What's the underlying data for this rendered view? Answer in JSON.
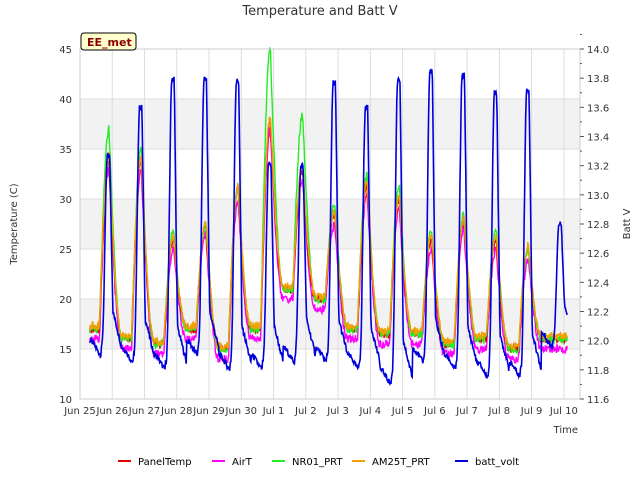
{
  "chart_data": {
    "type": "line",
    "title": "Temperature and Batt V",
    "xlabel": "Time",
    "ylabel": "Temperature (C)",
    "y2label": "Batt V",
    "badge": "EE_met",
    "ylim": [
      10,
      45
    ],
    "y2lim": [
      11.6,
      14.0
    ],
    "xlim": [
      0,
      15.5
    ],
    "y_ticks": [
      10,
      15,
      20,
      25,
      30,
      35,
      40,
      45
    ],
    "y2_ticks": [
      "11.6",
      "11.8",
      "12.0",
      "12.2",
      "12.4",
      "12.6",
      "12.8",
      "13.0",
      "13.2",
      "13.4",
      "13.6",
      "13.8",
      "14.0"
    ],
    "x_ticks": [
      {
        "label": "Jun 25",
        "day": 0
      },
      {
        "label": "Jun 26",
        "day": 1
      },
      {
        "label": "Jun 27",
        "day": 2
      },
      {
        "label": "Jun 28",
        "day": 3
      },
      {
        "label": "Jun 29",
        "day": 4
      },
      {
        "label": "Jun 30",
        "day": 5
      },
      {
        "label": "Jul 1",
        "day": 6
      },
      {
        "label": "Jul 2",
        "day": 7
      },
      {
        "label": "Jul 3",
        "day": 8
      },
      {
        "label": "Jul 4",
        "day": 9
      },
      {
        "label": "Jul 5",
        "day": 10
      },
      {
        "label": "Jul 6",
        "day": 11
      },
      {
        "label": "Jul 7",
        "day": 12
      },
      {
        "label": "Jul 8",
        "day": 13
      },
      {
        "label": "Jul 9",
        "day": 14
      },
      {
        "label": "Jul 10",
        "day": 15
      }
    ],
    "daily": {
      "day_start": 0.3,
      "days": 15,
      "temp_min": [
        17,
        16,
        15.5,
        17,
        15,
        17,
        21,
        20,
        17,
        16.5,
        16.5,
        15.5,
        16,
        15,
        16
      ],
      "temp_max": [
        34,
        34,
        26,
        27.5,
        31,
        38,
        33,
        28.5,
        31.5,
        30,
        26,
        28,
        26,
        25,
        16
      ],
      "nr01_max": [
        37,
        35,
        27,
        27.5,
        31,
        45,
        38.5,
        29.5,
        32.5,
        31.5,
        27,
        28.5,
        27,
        25,
        16
      ],
      "airt_offset": -1.0,
      "batt_min": [
        11.95,
        11.9,
        11.85,
        11.95,
        11.85,
        11.85,
        11.9,
        11.9,
        11.85,
        11.75,
        11.9,
        11.85,
        11.8,
        11.8,
        12.0
      ],
      "batt_max": [
        13.27,
        13.6,
        13.8,
        13.8,
        13.78,
        13.22,
        13.2,
        13.77,
        13.6,
        13.78,
        13.85,
        13.82,
        13.7,
        13.72,
        12.8
      ]
    },
    "series": [
      {
        "name": "PanelTemp",
        "color": "#e00000",
        "axis": "left"
      },
      {
        "name": "AirT",
        "color": "#ff00ff",
        "axis": "left"
      },
      {
        "name": "NR01_PRT",
        "color": "#22ee22",
        "axis": "left"
      },
      {
        "name": "AM25T_PRT",
        "color": "#f0a000",
        "axis": "left"
      },
      {
        "name": "batt_volt",
        "color": "#0000dd",
        "axis": "right"
      }
    ]
  }
}
